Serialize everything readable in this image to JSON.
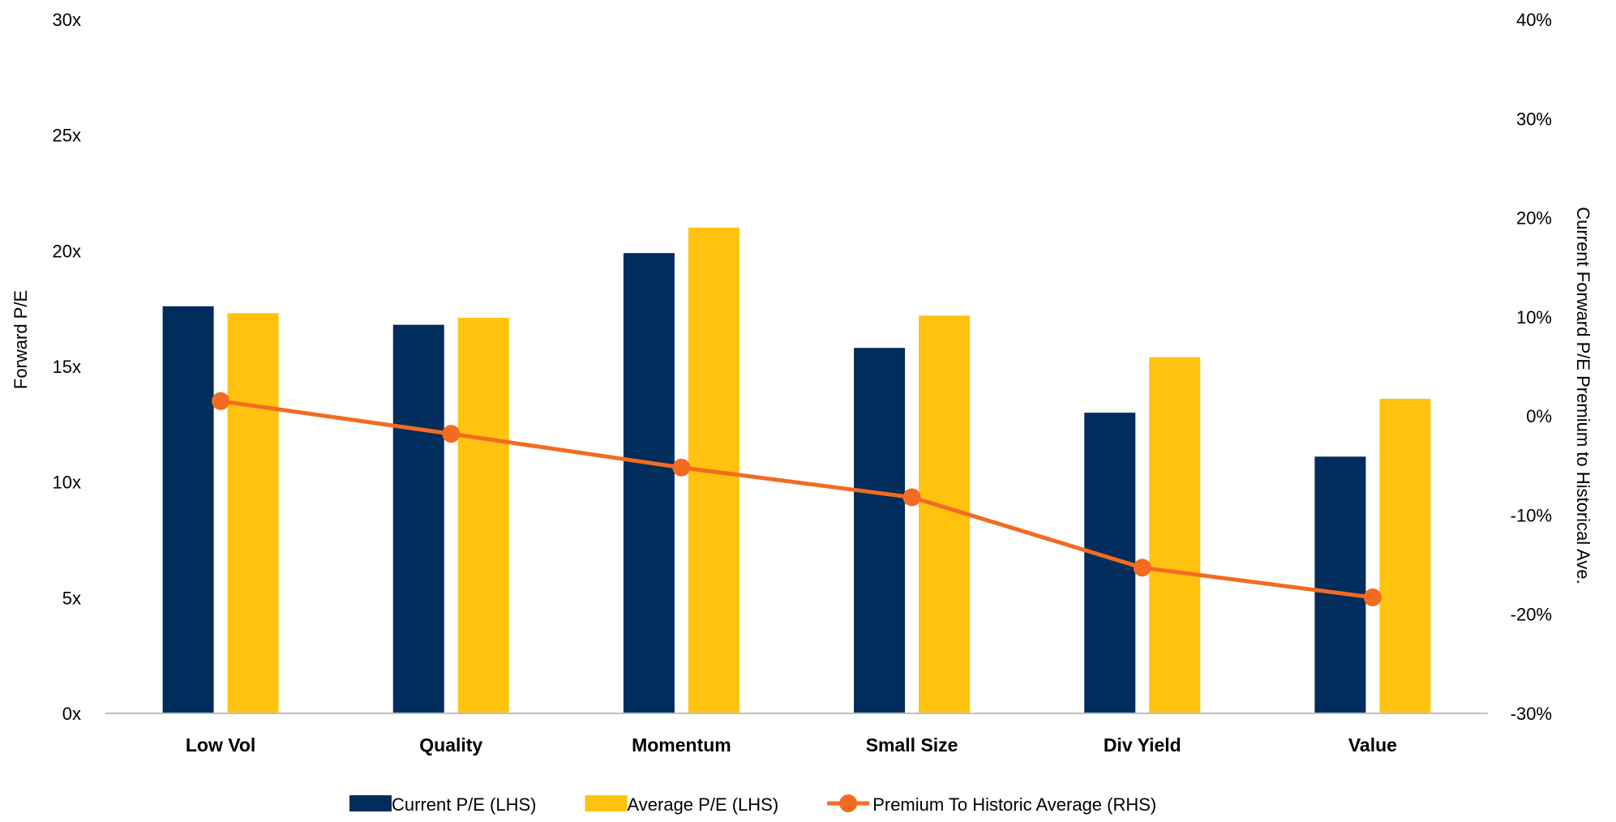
{
  "chart_data": {
    "type": "bar",
    "categories": [
      "Low Vol",
      "Quality",
      "Momentum",
      "Small Size",
      "Div Yield",
      "Value"
    ],
    "series": [
      {
        "name": "Current P/E (LHS)",
        "axis": "left",
        "kind": "bar",
        "color": "#002D5B",
        "values": [
          17.6,
          16.8,
          19.9,
          15.8,
          13.0,
          11.1
        ]
      },
      {
        "name": "Average P/E (LHS)",
        "axis": "left",
        "kind": "bar",
        "color": "#FFC20E",
        "values": [
          17.3,
          17.1,
          21.0,
          17.2,
          15.4,
          13.6
        ]
      },
      {
        "name": "Premium To Historic Average (RHS)",
        "axis": "right",
        "kind": "line",
        "color": "#F26B21",
        "values": [
          1.5,
          -1.8,
          -5.2,
          -8.2,
          -15.3,
          -18.3
        ]
      }
    ],
    "ylabel_left": "Forward P/E",
    "ylabel_right": "Current Forward P/E Premium to Historical Ave.",
    "ylim_left": [
      0,
      30
    ],
    "ylim_right": [
      -30,
      40
    ],
    "yticks_left": [
      "0x",
      "5x",
      "10x",
      "15x",
      "20x",
      "25x",
      "30x"
    ],
    "yticks_right": [
      "-30%",
      "-20%",
      "-10%",
      "0%",
      "10%",
      "20%",
      "30%",
      "40%"
    ],
    "grid": false,
    "legend_position": "bottom"
  }
}
